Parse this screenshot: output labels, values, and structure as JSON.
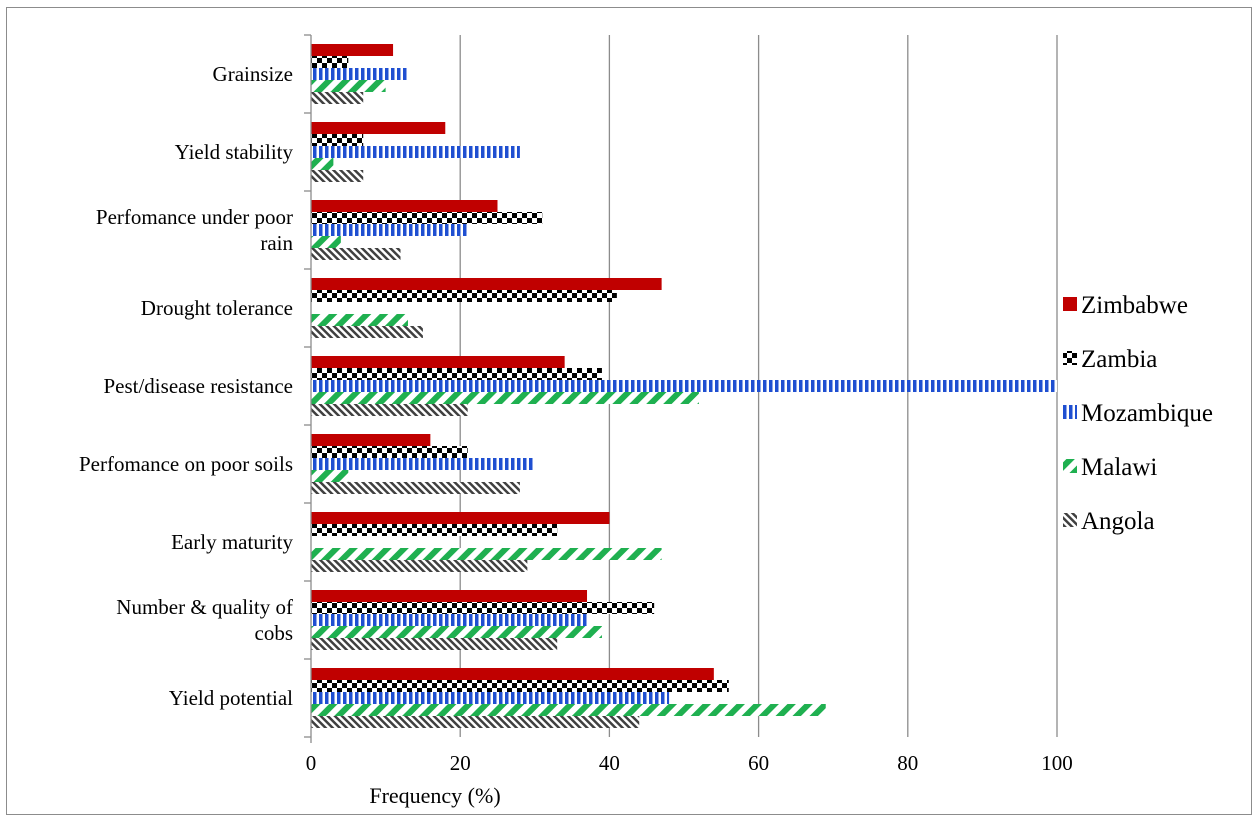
{
  "chart_data": {
    "type": "bar",
    "orientation": "horizontal",
    "title": "",
    "xlabel": "Frequency (%)",
    "ylabel": "",
    "xlim": [
      0,
      100
    ],
    "xticks": [
      0,
      20,
      40,
      60,
      80,
      100
    ],
    "grid": "vertical",
    "legend_position": "right",
    "categories": [
      [
        "Grainsize"
      ],
      [
        "Yield stability"
      ],
      [
        "Perfomance under poor",
        "rain"
      ],
      [
        "Drought tolerance"
      ],
      [
        "Pest/disease resistance"
      ],
      [
        "Perfomance on poor soils"
      ],
      [
        "Early maturity"
      ],
      [
        "Number & quality of",
        "cobs"
      ],
      [
        "Yield potential"
      ]
    ],
    "series": [
      {
        "name": "Zimbabwe",
        "pattern": "solid",
        "color": "#c00000",
        "values": [
          11,
          18,
          25,
          47,
          34,
          16,
          40,
          37,
          54
        ]
      },
      {
        "name": "Zambia",
        "pattern": "checker",
        "color": "#000000",
        "values": [
          5,
          7,
          31,
          41,
          39,
          21,
          33,
          46,
          56
        ]
      },
      {
        "name": "Mozambique",
        "pattern": "vertical-stripes",
        "color": "#1f4fd1",
        "values": [
          13,
          28,
          21,
          0,
          100,
          30,
          0,
          37,
          48
        ]
      },
      {
        "name": "Malawi",
        "pattern": "diagonal-stripes",
        "color": "#1fb050",
        "values": [
          10,
          3,
          4,
          13,
          52,
          5,
          47,
          39,
          69
        ]
      },
      {
        "name": "Angola",
        "pattern": "diagonal-hatch",
        "color": "#404040",
        "values": [
          7,
          7,
          12,
          15,
          21,
          28,
          29,
          33,
          44
        ]
      }
    ]
  }
}
